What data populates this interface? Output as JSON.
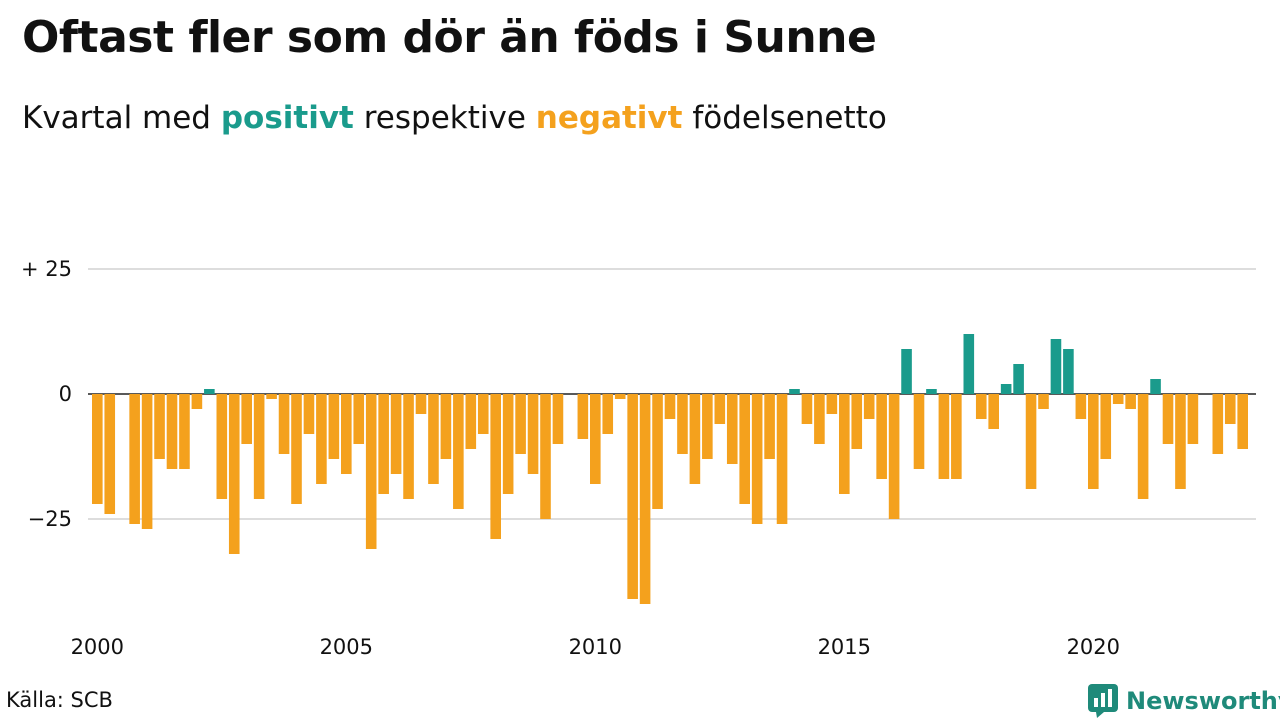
{
  "title": "Oftast fler som dör än föds i Sunne",
  "subtitle": {
    "prefix": "Kvartal med ",
    "positive": "positivt",
    "middle": " respektive ",
    "negative": "negativt",
    "suffix": " födelsenetto"
  },
  "source": "Källa: SCB",
  "brand": {
    "name": "Newsworthy",
    "icon": "newsworthy-logo-icon"
  },
  "colors": {
    "positive": "#1a9b8c",
    "negative": "#f4a11d",
    "grid": "#dddddd",
    "zero": "#222222"
  },
  "chart_data": {
    "type": "bar",
    "title": "Oftast fler som dör än föds i Sunne",
    "subtitle": "Kvartal med positivt respektive negativt födelsenetto",
    "start_year": 2000,
    "categories": [
      "2000 Q1",
      "2000 Q2",
      "2000 Q3",
      "2000 Q4",
      "2001 Q1",
      "2001 Q2",
      "2001 Q3",
      "2001 Q4",
      "2002 Q1",
      "2002 Q2",
      "2002 Q3",
      "2002 Q4",
      "2003 Q1",
      "2003 Q2",
      "2003 Q3",
      "2003 Q4",
      "2004 Q1",
      "2004 Q2",
      "2004 Q3",
      "2004 Q4",
      "2005 Q1",
      "2005 Q2",
      "2005 Q3",
      "2005 Q4",
      "2006 Q1",
      "2006 Q2",
      "2006 Q3",
      "2006 Q4",
      "2007 Q1",
      "2007 Q2",
      "2007 Q3",
      "2007 Q4",
      "2008 Q1",
      "2008 Q2",
      "2008 Q3",
      "2008 Q4",
      "2009 Q1",
      "2009 Q2",
      "2009 Q3",
      "2009 Q4",
      "2010 Q1",
      "2010 Q2",
      "2010 Q3",
      "2010 Q4",
      "2011 Q1",
      "2011 Q2",
      "2011 Q3",
      "2011 Q4",
      "2012 Q1",
      "2012 Q2",
      "2012 Q3",
      "2012 Q4",
      "2013 Q1",
      "2013 Q2",
      "2013 Q3",
      "2013 Q4",
      "2014 Q1",
      "2014 Q2",
      "2014 Q3",
      "2014 Q4",
      "2015 Q1",
      "2015 Q2",
      "2015 Q3",
      "2015 Q4",
      "2016 Q1",
      "2016 Q2",
      "2016 Q3",
      "2016 Q4",
      "2017 Q1",
      "2017 Q2",
      "2017 Q3",
      "2017 Q4",
      "2018 Q1",
      "2018 Q2",
      "2018 Q3",
      "2018 Q4",
      "2019 Q1",
      "2019 Q2",
      "2019 Q3",
      "2019 Q4",
      "2020 Q1",
      "2020 Q2",
      "2020 Q3",
      "2020 Q4",
      "2021 Q1",
      "2021 Q2",
      "2021 Q3",
      "2021 Q4",
      "2022 Q1",
      "2022 Q2",
      "2022 Q3",
      "2022 Q4",
      "2023 Q1",
      "2023 Q2",
      "2023 Q3",
      "2023 Q4"
    ],
    "values": [
      -22,
      -24,
      null,
      -26,
      -27,
      -13,
      -15,
      -15,
      -3,
      1,
      -21,
      -32,
      -10,
      -21,
      -1,
      -12,
      -22,
      -8,
      -18,
      -13,
      -16,
      -10,
      -31,
      -20,
      -16,
      -21,
      -4,
      -18,
      -13,
      -23,
      -11,
      -8,
      -29,
      -20,
      -12,
      -16,
      -25,
      -10,
      null,
      -9,
      -18,
      -8,
      -1,
      -41,
      -42,
      -23,
      -5,
      -12,
      -18,
      -13,
      -6,
      -14,
      -22,
      -26,
      -13,
      -26,
      1,
      -6,
      -10,
      -4,
      -20,
      -11,
      -5,
      -17,
      -25,
      9,
      -15,
      1,
      -17,
      -17,
      12,
      -5,
      -7,
      2,
      6,
      -19,
      -3,
      11,
      9,
      -5,
      -19,
      -13,
      -2,
      -3,
      -21,
      3,
      -10,
      -19,
      -10,
      null,
      -12,
      -6,
      -11,
      null,
      null,
      null
    ],
    "y_ticks": [
      25,
      0,
      -25
    ],
    "y_tick_labels": [
      "+ 25",
      "0",
      "−25"
    ],
    "x_ticks": [
      2000,
      2005,
      2010,
      2015,
      2020
    ],
    "x_tick_labels": [
      "2000",
      "2005",
      "2010",
      "2015",
      "2020"
    ],
    "ylim": [
      -45,
      30
    ],
    "grid": true,
    "legend": "none"
  }
}
